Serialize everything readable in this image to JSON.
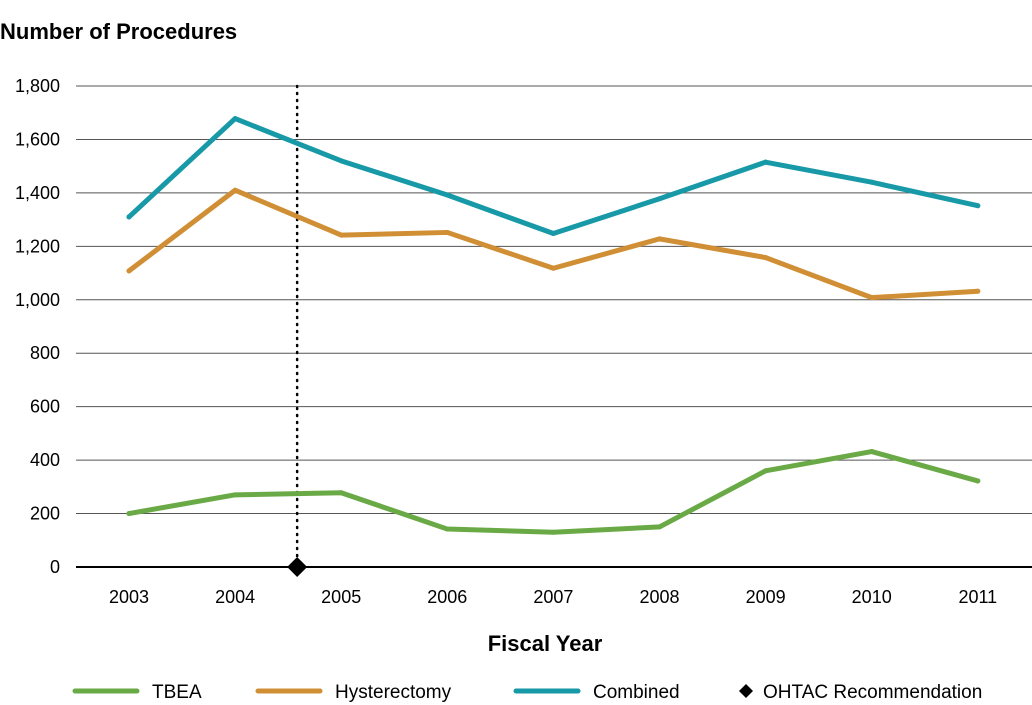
{
  "chart_data": {
    "type": "line",
    "ylabel": "Number of Procedures",
    "xlabel": "Fiscal Year",
    "categories": [
      "2003",
      "2004",
      "2005",
      "2006",
      "2007",
      "2008",
      "2009",
      "2010",
      "2011"
    ],
    "ylim": [
      0,
      1800
    ],
    "yticks": [
      0,
      200,
      400,
      600,
      800,
      1000,
      1200,
      1400,
      1600,
      1800
    ],
    "ytick_labels": [
      "0",
      "200",
      "400",
      "600",
      "800",
      "1,000",
      "1,200",
      "1,400",
      "1,600",
      "1,800"
    ],
    "grid": "horizontal",
    "legend_position": "bottom",
    "series": [
      {
        "name": "TBEA",
        "color": "#6aaa46",
        "values": [
          200,
          270,
          278,
          142,
          130,
          150,
          360,
          432,
          322
        ]
      },
      {
        "name": "Hysterectomy",
        "color": "#d08f35",
        "values": [
          1108,
          1410,
          1242,
          1252,
          1118,
          1228,
          1158,
          1008,
          1032
        ]
      },
      {
        "name": "Combined",
        "color": "#1799a7",
        "values": [
          1310,
          1678,
          1520,
          1392,
          1248,
          1378,
          1515,
          1440,
          1352
        ]
      }
    ],
    "annotation": {
      "label": "OHTAC Recommendation",
      "x_between": [
        "2004",
        "2005"
      ],
      "y": 0,
      "marker": "diamond",
      "line_style": "dotted",
      "color": "#000000"
    }
  }
}
